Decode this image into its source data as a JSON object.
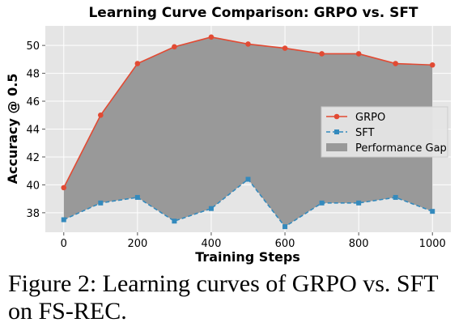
{
  "chart_data": {
    "type": "line",
    "title": "Learning Curve Comparison: GRPO vs. SFT",
    "xlabel": "Training Steps",
    "ylabel": "Accuracy @ 0.5",
    "x": [
      0,
      100,
      200,
      300,
      400,
      500,
      600,
      700,
      800,
      900,
      1000
    ],
    "xticks": [
      "0",
      "200",
      "400",
      "600",
      "800",
      "1000"
    ],
    "yticks": [
      "38",
      "40",
      "42",
      "44",
      "46",
      "48",
      "50"
    ],
    "xlim": [
      -50,
      1050
    ],
    "ylim": [
      36.6,
      51.4
    ],
    "grid": true,
    "legend_position": "center-right",
    "series": [
      {
        "name": "GRPO",
        "marker": "circle",
        "style": "solid",
        "color": "#E24A33",
        "values": [
          39.8,
          45.0,
          48.7,
          49.9,
          50.6,
          50.1,
          49.8,
          49.4,
          49.4,
          48.7,
          48.6
        ]
      },
      {
        "name": "SFT",
        "marker": "square",
        "style": "dashed",
        "color": "#348ABD",
        "values": [
          37.5,
          38.7,
          39.1,
          37.4,
          38.3,
          40.4,
          37.0,
          38.7,
          38.7,
          39.1,
          38.1
        ]
      }
    ],
    "fill_label": "Performance Gap",
    "fill_color": "#999999"
  },
  "caption": {
    "line1": "Figure 2: Learning curves of GRPO vs. SFT",
    "line2": "on FS-REC."
  }
}
